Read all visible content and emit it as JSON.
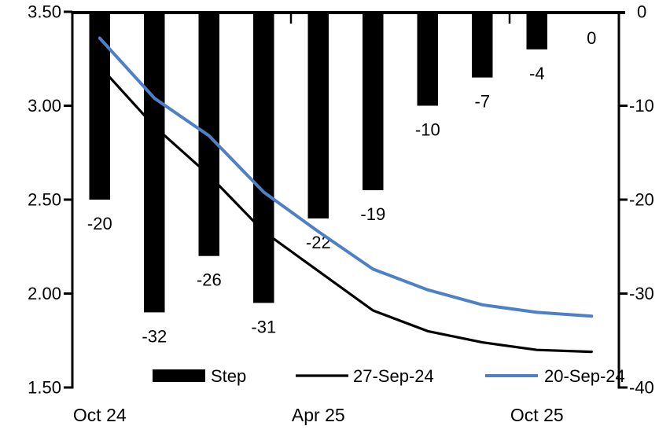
{
  "chart_data": {
    "type": "combo",
    "title": "",
    "bar_series": {
      "name": "Step",
      "axis": "right",
      "color": "#000000",
      "values": [
        -20,
        -32,
        -26,
        -31,
        -22,
        -19,
        -10,
        -7,
        -4,
        0
      ],
      "data_labels": [
        "-20",
        "-32",
        "-26",
        "-31",
        "-22",
        "-19",
        "-10",
        "-7",
        "-4",
        "0"
      ]
    },
    "line_series": [
      {
        "name": "27-Sep-24",
        "axis": "left",
        "color": "#000000",
        "stroke_width": 3.2,
        "values": [
          3.21,
          2.89,
          2.63,
          2.33,
          2.12,
          1.91,
          1.8,
          1.74,
          1.7,
          1.69
        ]
      },
      {
        "name": "20-Sep-24",
        "axis": "left",
        "color": "#4e80c8",
        "stroke_width": 4,
        "values": [
          3.36,
          3.04,
          2.84,
          2.54,
          2.33,
          2.13,
          2.02,
          1.94,
          1.9,
          1.88
        ]
      }
    ],
    "left_axis": {
      "min": 1.5,
      "max": 3.5,
      "tick_labels": [
        "3.50",
        "3.00",
        "2.50",
        "2.00",
        "1.50"
      ]
    },
    "right_axis": {
      "min": -40,
      "max": 0,
      "tick_labels": [
        "0",
        "-10",
        "-20",
        "-30",
        "-40"
      ]
    },
    "x_axis": {
      "tick_labels": [
        {
          "label": "Oct 24",
          "slot": 0
        },
        {
          "label": "Apr 25",
          "slot": 4
        },
        {
          "label": "Oct 25",
          "slot": 8
        }
      ],
      "boundary_ticks": [
        4,
        8
      ]
    },
    "legend": [
      {
        "label": "Step",
        "swatch": "bar",
        "color": "#000000"
      },
      {
        "label": "27-Sep-24",
        "swatch": "line",
        "color": "#000000"
      },
      {
        "label": "20-Sep-24",
        "swatch": "line",
        "color": "#4e80c8"
      }
    ],
    "layout_hints": {
      "grid": false,
      "legend_position": "bottom",
      "bars_hang_from_top_zero_line": true
    }
  }
}
